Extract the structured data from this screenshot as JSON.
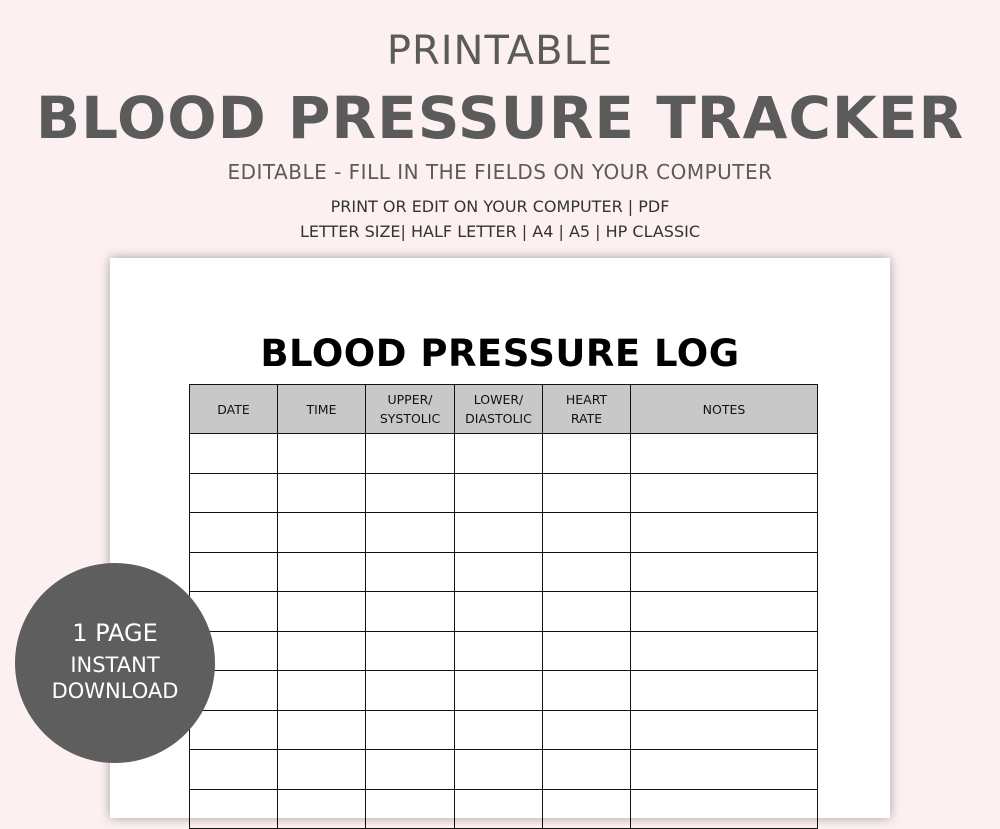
{
  "header": {
    "pretitle": "PRINTABLE",
    "title": "BLOOD PRESSURE TRACKER",
    "subtitle": "EDITABLE - FILL IN THE FIELDS ON YOUR COMPUTER",
    "line1": "PRINT OR EDIT ON YOUR COMPUTER | PDF",
    "line2": "LETTER SIZE| HALF LETTER | A4 | A5 | HP CLASSIC"
  },
  "sheet": {
    "title": "BLOOD PRESSURE LOG",
    "columns": [
      {
        "line1": "DATE",
        "line2": ""
      },
      {
        "line1": "TIME",
        "line2": ""
      },
      {
        "line1": "UPPER/",
        "line2": "SYSTOLIC"
      },
      {
        "line1": "LOWER/",
        "line2": "DIASTOLIC"
      },
      {
        "line1": "HEART",
        "line2": "RATE"
      },
      {
        "line1": "NOTES",
        "line2": ""
      }
    ]
  },
  "badge": {
    "line1": "1 PAGE",
    "line2": "INSTANT",
    "line3": "DOWNLOAD"
  },
  "colors": {
    "background": "#fcf1f0",
    "text": "#5b5b5b",
    "badge": "#5e5e5e",
    "header_fill": "#c8c8c8"
  }
}
